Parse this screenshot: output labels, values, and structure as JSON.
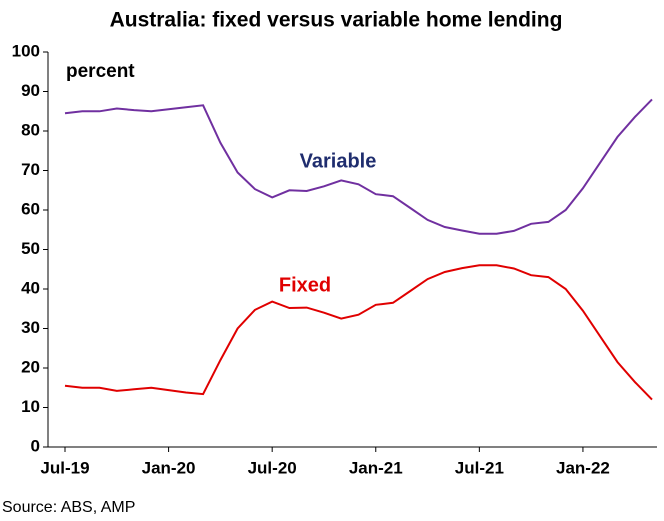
{
  "chart_data": {
    "type": "line",
    "title": "Australia: fixed versus variable home lending",
    "ylabel": "percent",
    "source": "Source: ABS, AMP",
    "categories": [
      "Jul-19",
      null,
      null,
      null,
      null,
      null,
      "Jan-20",
      null,
      null,
      null,
      null,
      null,
      "Jul-20",
      null,
      null,
      null,
      null,
      null,
      "Jan-21",
      null,
      null,
      null,
      null,
      null,
      "Jul-21",
      null,
      null,
      null,
      null,
      null,
      "Jan-22",
      null,
      null,
      null,
      null
    ],
    "series": [
      {
        "name": "Variable",
        "color": "#7030a0",
        "values": [
          84.5,
          85,
          85,
          85.7,
          85.3,
          85,
          85.5,
          86,
          86.5,
          77,
          69.5,
          65.3,
          63.2,
          65,
          64.8,
          66,
          67.5,
          66.5,
          64,
          63.5,
          60.5,
          57.5,
          55.7,
          54.8,
          54,
          54,
          54.7,
          56.5,
          57,
          60,
          65.5,
          72,
          78.5,
          83.5,
          88
        ]
      },
      {
        "name": "Fixed",
        "color": "#e00000",
        "values": [
          15.5,
          15,
          15,
          14.2,
          14.6,
          15,
          14.4,
          13.8,
          13.4,
          22,
          30,
          34.7,
          36.8,
          35.2,
          35.3,
          34,
          32.5,
          33.5,
          36,
          36.5,
          39.5,
          42.5,
          44.3,
          45.3,
          46,
          46,
          45.2,
          43.5,
          43,
          40,
          34.5,
          28,
          21.5,
          16.5,
          12
        ]
      }
    ],
    "ylim": [
      0,
      100
    ],
    "yticks": [
      0,
      10,
      20,
      30,
      40,
      50,
      60,
      70,
      80,
      90,
      100
    ],
    "grid": false
  }
}
